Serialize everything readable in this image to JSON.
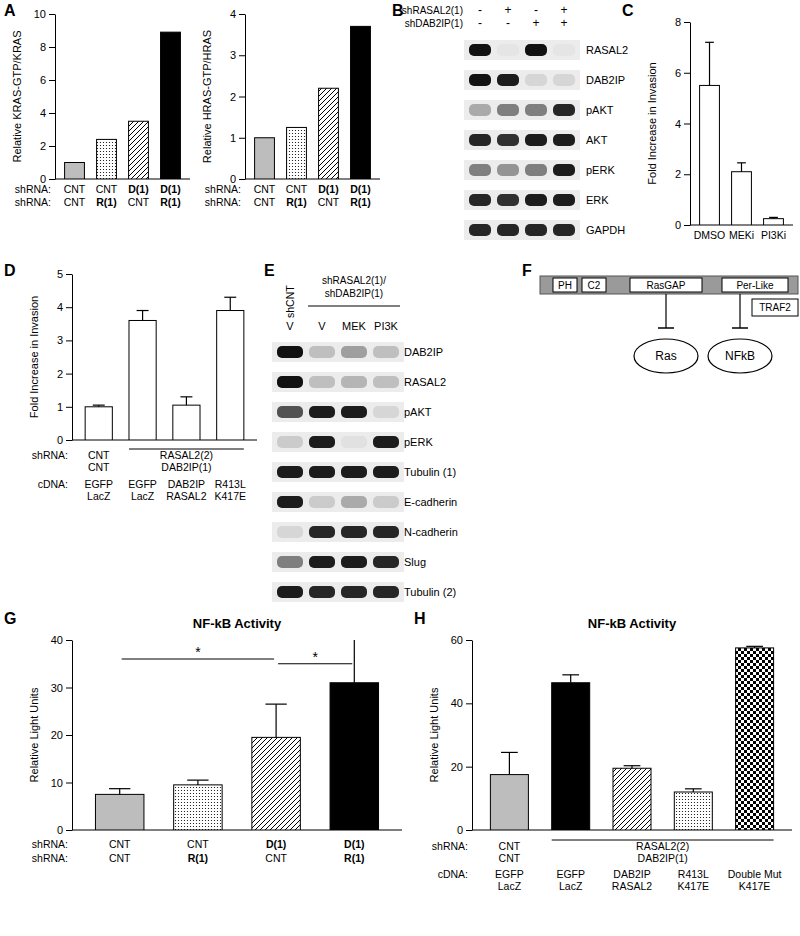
{
  "chart_data": [
    {
      "panel": "A",
      "type": "bar",
      "y_label": "Relative KRAS-GTP/KRAS",
      "category_titles": [
        "shRNA:",
        "shRNA:"
      ],
      "categories": [
        [
          "CNT",
          "CNT"
        ],
        [
          "CNT",
          "R(1)"
        ],
        [
          "D(1)",
          "CNT"
        ],
        [
          "D(1)",
          "R(1)"
        ]
      ],
      "values": [
        1,
        2.4,
        3.5,
        8.9
      ],
      "colors": [
        "#bdbdbd",
        "#ffffff",
        "#ffffff",
        "#000000"
      ],
      "ylim": [
        0,
        10
      ],
      "yticks": [
        0,
        2,
        4,
        6,
        8,
        10
      ]
    },
    {
      "type": "bar",
      "y_label": "Relative HRAS-GTP/HRAS",
      "category_titles": [
        "shRNA:",
        "shRNA:"
      ],
      "categories": [
        [
          "CNT",
          "CNT"
        ],
        [
          "CNT",
          "R(1)"
        ],
        [
          "D(1)",
          "CNT"
        ],
        [
          "D(1)",
          "R(1)"
        ]
      ],
      "values": [
        1,
        1.25,
        2.2,
        3.7
      ],
      "colors": [
        "#bdbdbd",
        "#ffffff",
        "#ffffff",
        "#000000"
      ],
      "ylim": [
        0,
        4
      ],
      "yticks": [
        0,
        1,
        2,
        3,
        4
      ]
    },
    {
      "panel": "C",
      "type": "bar",
      "y_label": "Fold Increase in Invasion",
      "categories": [
        "DMSO",
        "MEKi",
        "PI3Ki"
      ],
      "values": [
        5.5,
        2.1,
        0.25
      ],
      "errors": [
        1.7,
        0.35,
        0.05
      ],
      "color": "#ffffff",
      "ylim": [
        0,
        8
      ],
      "yticks": [
        0,
        2,
        4,
        6,
        8
      ]
    },
    {
      "panel": "D",
      "type": "bar",
      "y_label": "Fold Increase in Invasion",
      "group_titles": [
        "shRNA:"
      ],
      "groups": [
        {
          "labels": [
            "CNT",
            "CNT"
          ],
          "count": 1
        },
        {
          "labels": [
            "RASAL2(2)",
            "DAB2IP(1)"
          ],
          "count": 3
        }
      ],
      "category_titles": [
        "cDNA:"
      ],
      "categories": [
        [
          "EGFP",
          "LacZ"
        ],
        [
          "EGFP",
          "LacZ"
        ],
        [
          "DAB2IP",
          "RASAL2"
        ],
        [
          "R413L",
          "K417E"
        ]
      ],
      "values": [
        1,
        3.6,
        1.05,
        3.9
      ],
      "errors": [
        0.05,
        0.3,
        0.25,
        0.4
      ],
      "color": "#ffffff",
      "ylim": [
        0,
        5
      ],
      "yticks": [
        0,
        1,
        2,
        3,
        4,
        5
      ]
    },
    {
      "panel": "G",
      "type": "bar",
      "title": "NF-kB Activity",
      "y_label": "Relative Light Units",
      "category_titles": [
        "shRNA:",
        "shRNA:"
      ],
      "categories": [
        [
          "CNT",
          "CNT"
        ],
        [
          "CNT",
          "R(1)"
        ],
        [
          "D(1)",
          "CNT"
        ],
        [
          "D(1)",
          "R(1)"
        ]
      ],
      "values": [
        7.5,
        9.5,
        19.5,
        31
      ],
      "errors": [
        1.2,
        1,
        7,
        9.5
      ],
      "colors": [
        "#bdbdbd",
        "#ffffff",
        "#ffffff",
        "#000000"
      ],
      "ylim": [
        0,
        40
      ],
      "yticks": [
        0,
        10,
        20,
        30,
        40
      ],
      "significance": [
        {
          "label": "*",
          "from": 0,
          "to": 2,
          "y": 36
        },
        {
          "label": "*",
          "from": 2,
          "to": 3,
          "y": 35
        }
      ]
    },
    {
      "panel": "H",
      "type": "bar",
      "title": "NF-kB Activity",
      "y_label": "Relative Light Units",
      "group_titles": [
        "shRNA:"
      ],
      "groups": [
        {
          "labels": [
            "CNT",
            "CNT"
          ],
          "count": 1
        },
        {
          "labels": [
            "RASAL2(2)",
            "DAB2IP(1)"
          ],
          "count": 4
        }
      ],
      "category_titles": [
        "cDNA:"
      ],
      "categories": [
        [
          "EGFP",
          "LacZ"
        ],
        [
          "EGFP",
          "LacZ"
        ],
        [
          "DAB2IP",
          "RASAL2"
        ],
        [
          "R413L",
          "K417E"
        ],
        [
          "Double Mut",
          "K417E"
        ]
      ],
      "values": [
        17.5,
        46.5,
        19.5,
        12,
        57.5
      ],
      "errors": [
        7,
        2.5,
        0.8,
        1,
        0.5
      ],
      "colors": [
        "#bdbdbd",
        "#000000",
        "#ffffff",
        "#ffffff",
        "#ffffff"
      ],
      "ylim": [
        0,
        60
      ],
      "yticks": [
        0,
        20,
        40,
        60
      ]
    }
  ],
  "blots": [
    {
      "panel": "B",
      "header": [
        {
          "label": "shRASAL2(1)",
          "lanes": [
            "-",
            "+",
            "-",
            "+"
          ]
        },
        {
          "label": "shDAB2IP(1)",
          "lanes": [
            "-",
            "-",
            "+",
            "+"
          ]
        }
      ],
      "rows": [
        {
          "label": "RASAL2",
          "intensity": [
            1,
            0.03,
            1,
            0.03
          ]
        },
        {
          "label": "DAB2IP",
          "intensity": [
            1,
            0.95,
            0.1,
            0.1
          ]
        },
        {
          "label": "pAKT",
          "intensity": [
            0.3,
            0.5,
            0.5,
            0.9
          ]
        },
        {
          "label": "AKT",
          "intensity": [
            0.9,
            0.85,
            0.95,
            0.95
          ]
        },
        {
          "label": "pERK",
          "intensity": [
            0.5,
            0.4,
            0.5,
            0.95
          ]
        },
        {
          "label": "ERK",
          "intensity": [
            0.9,
            0.85,
            0.95,
            0.95
          ]
        },
        {
          "label": "GAPDH",
          "intensity": [
            0.9,
            0.9,
            0.9,
            0.9
          ]
        }
      ]
    },
    {
      "panel": "E",
      "groups": [
        {
          "labels": [
            "shCNT"
          ],
          "count": 1
        },
        {
          "labels": [
            "shRASAL2(1)/",
            "shDAB2IP(1)"
          ],
          "count": 3
        }
      ],
      "lanes": [
        "V",
        "V",
        "MEK",
        "PI3K"
      ],
      "rows": [
        {
          "label": "DAB2IP",
          "intensity": [
            1,
            0.2,
            0.35,
            0.2
          ]
        },
        {
          "label": "RASAL2",
          "intensity": [
            1,
            0.2,
            0.25,
            0.2
          ]
        },
        {
          "label": "pAKT",
          "intensity": [
            0.7,
            0.95,
            0.95,
            0.1
          ]
        },
        {
          "label": "pERK",
          "intensity": [
            0.15,
            0.95,
            0.05,
            0.95
          ]
        },
        {
          "label": "Tubulin (1)",
          "intensity": [
            0.95,
            0.95,
            0.95,
            0.95
          ]
        },
        {
          "label": "E-cadherin",
          "intensity": [
            0.95,
            0.15,
            0.3,
            0.15
          ]
        },
        {
          "label": "N-cadherin",
          "intensity": [
            0.1,
            0.9,
            0.9,
            0.9
          ]
        },
        {
          "label": "Slug",
          "intensity": [
            0.5,
            0.95,
            0.95,
            0.9
          ]
        },
        {
          "label": "Tubulin (2)",
          "intensity": [
            0.95,
            0.9,
            0.9,
            0.9
          ]
        }
      ]
    }
  ],
  "diagram": {
    "panel": "F",
    "domains": [
      "PH",
      "C2",
      "RasGAP",
      "Per-Like"
    ],
    "partner": "TRAF2",
    "targets": [
      "Ras",
      "NFkB"
    ]
  }
}
